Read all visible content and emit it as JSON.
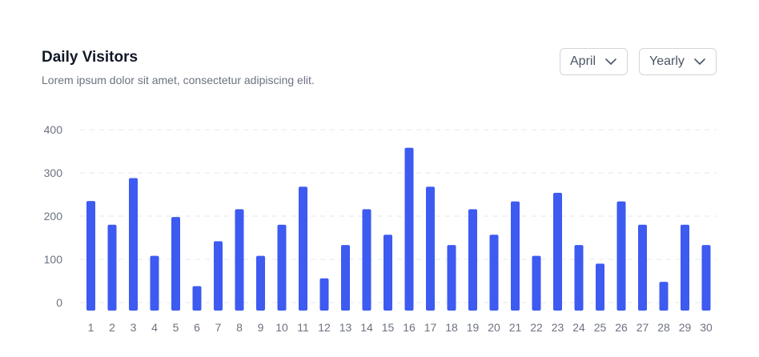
{
  "header": {
    "title": "Daily Visitors",
    "subtitle": "Lorem ipsum dolor sit amet, consectetur adipiscing elit."
  },
  "filters": {
    "month_value": "April",
    "period_value": "Yearly"
  },
  "colors": {
    "bar": "#3d5af1",
    "grid": "#e5e7eb",
    "axis_text": "#6b7280"
  },
  "chart_data": {
    "type": "bar",
    "categories": [
      "1",
      "2",
      "3",
      "4",
      "5",
      "6",
      "7",
      "8",
      "9",
      "10",
      "11",
      "12",
      "13",
      "14",
      "15",
      "16",
      "17",
      "18",
      "19",
      "20",
      "21",
      "22",
      "23",
      "24",
      "25",
      "26",
      "27",
      "28",
      "29",
      "30"
    ],
    "values": [
      235,
      180,
      288,
      108,
      198,
      38,
      142,
      216,
      108,
      180,
      268,
      56,
      133,
      216,
      157,
      358,
      268,
      133,
      216,
      157,
      234,
      108,
      254,
      133,
      90,
      234,
      180,
      48,
      180,
      133
    ],
    "yticks": [
      0,
      100,
      200,
      300,
      400
    ],
    "ylim": [
      0,
      400
    ],
    "grid": true,
    "title": "",
    "xlabel": "",
    "ylabel": ""
  }
}
